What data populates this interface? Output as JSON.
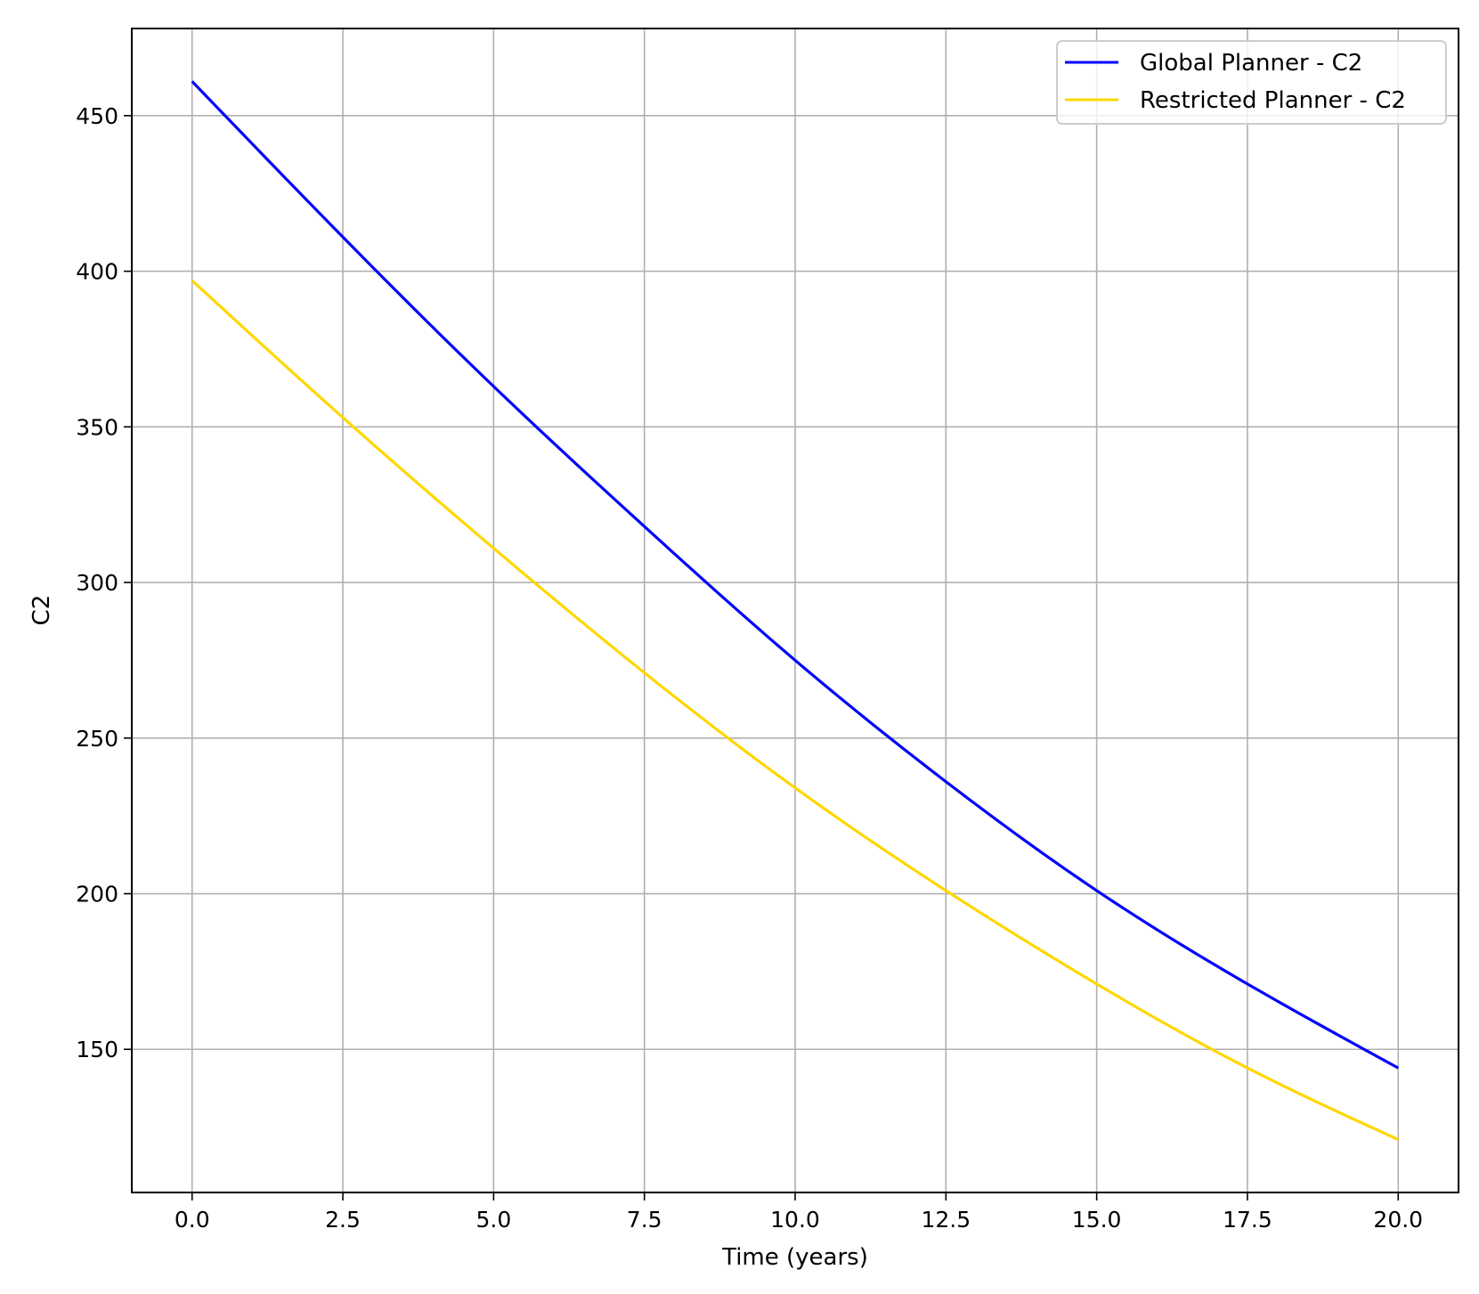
{
  "chart_data": {
    "type": "line",
    "title": "",
    "xlabel": "Time (years)",
    "ylabel": "C2",
    "xlim": [
      -1.0,
      21.0
    ],
    "ylim": [
      104,
      478
    ],
    "xticks": [
      "0.0",
      "2.5",
      "5.0",
      "7.5",
      "10.0",
      "12.5",
      "15.0",
      "17.5",
      "20.0"
    ],
    "yticks": [
      "150",
      "200",
      "250",
      "300",
      "350",
      "400",
      "450"
    ],
    "grid": true,
    "legend_position": "top-right",
    "series": [
      {
        "name": "Global Planner - C2",
        "color": "#0000ff",
        "x": [
          0,
          2.5,
          5,
          7.5,
          10,
          12.5,
          15,
          17.5,
          20
        ],
        "y": [
          461,
          411,
          363,
          318,
          275,
          236,
          201,
          171,
          144
        ]
      },
      {
        "name": "Restricted Planner - C2",
        "color": "#ffd700",
        "x": [
          0,
          2.5,
          5,
          7.5,
          10,
          12.5,
          15,
          17.5,
          20
        ],
        "y": [
          397,
          353,
          311,
          271,
          234,
          201,
          171,
          144,
          121
        ]
      }
    ]
  }
}
